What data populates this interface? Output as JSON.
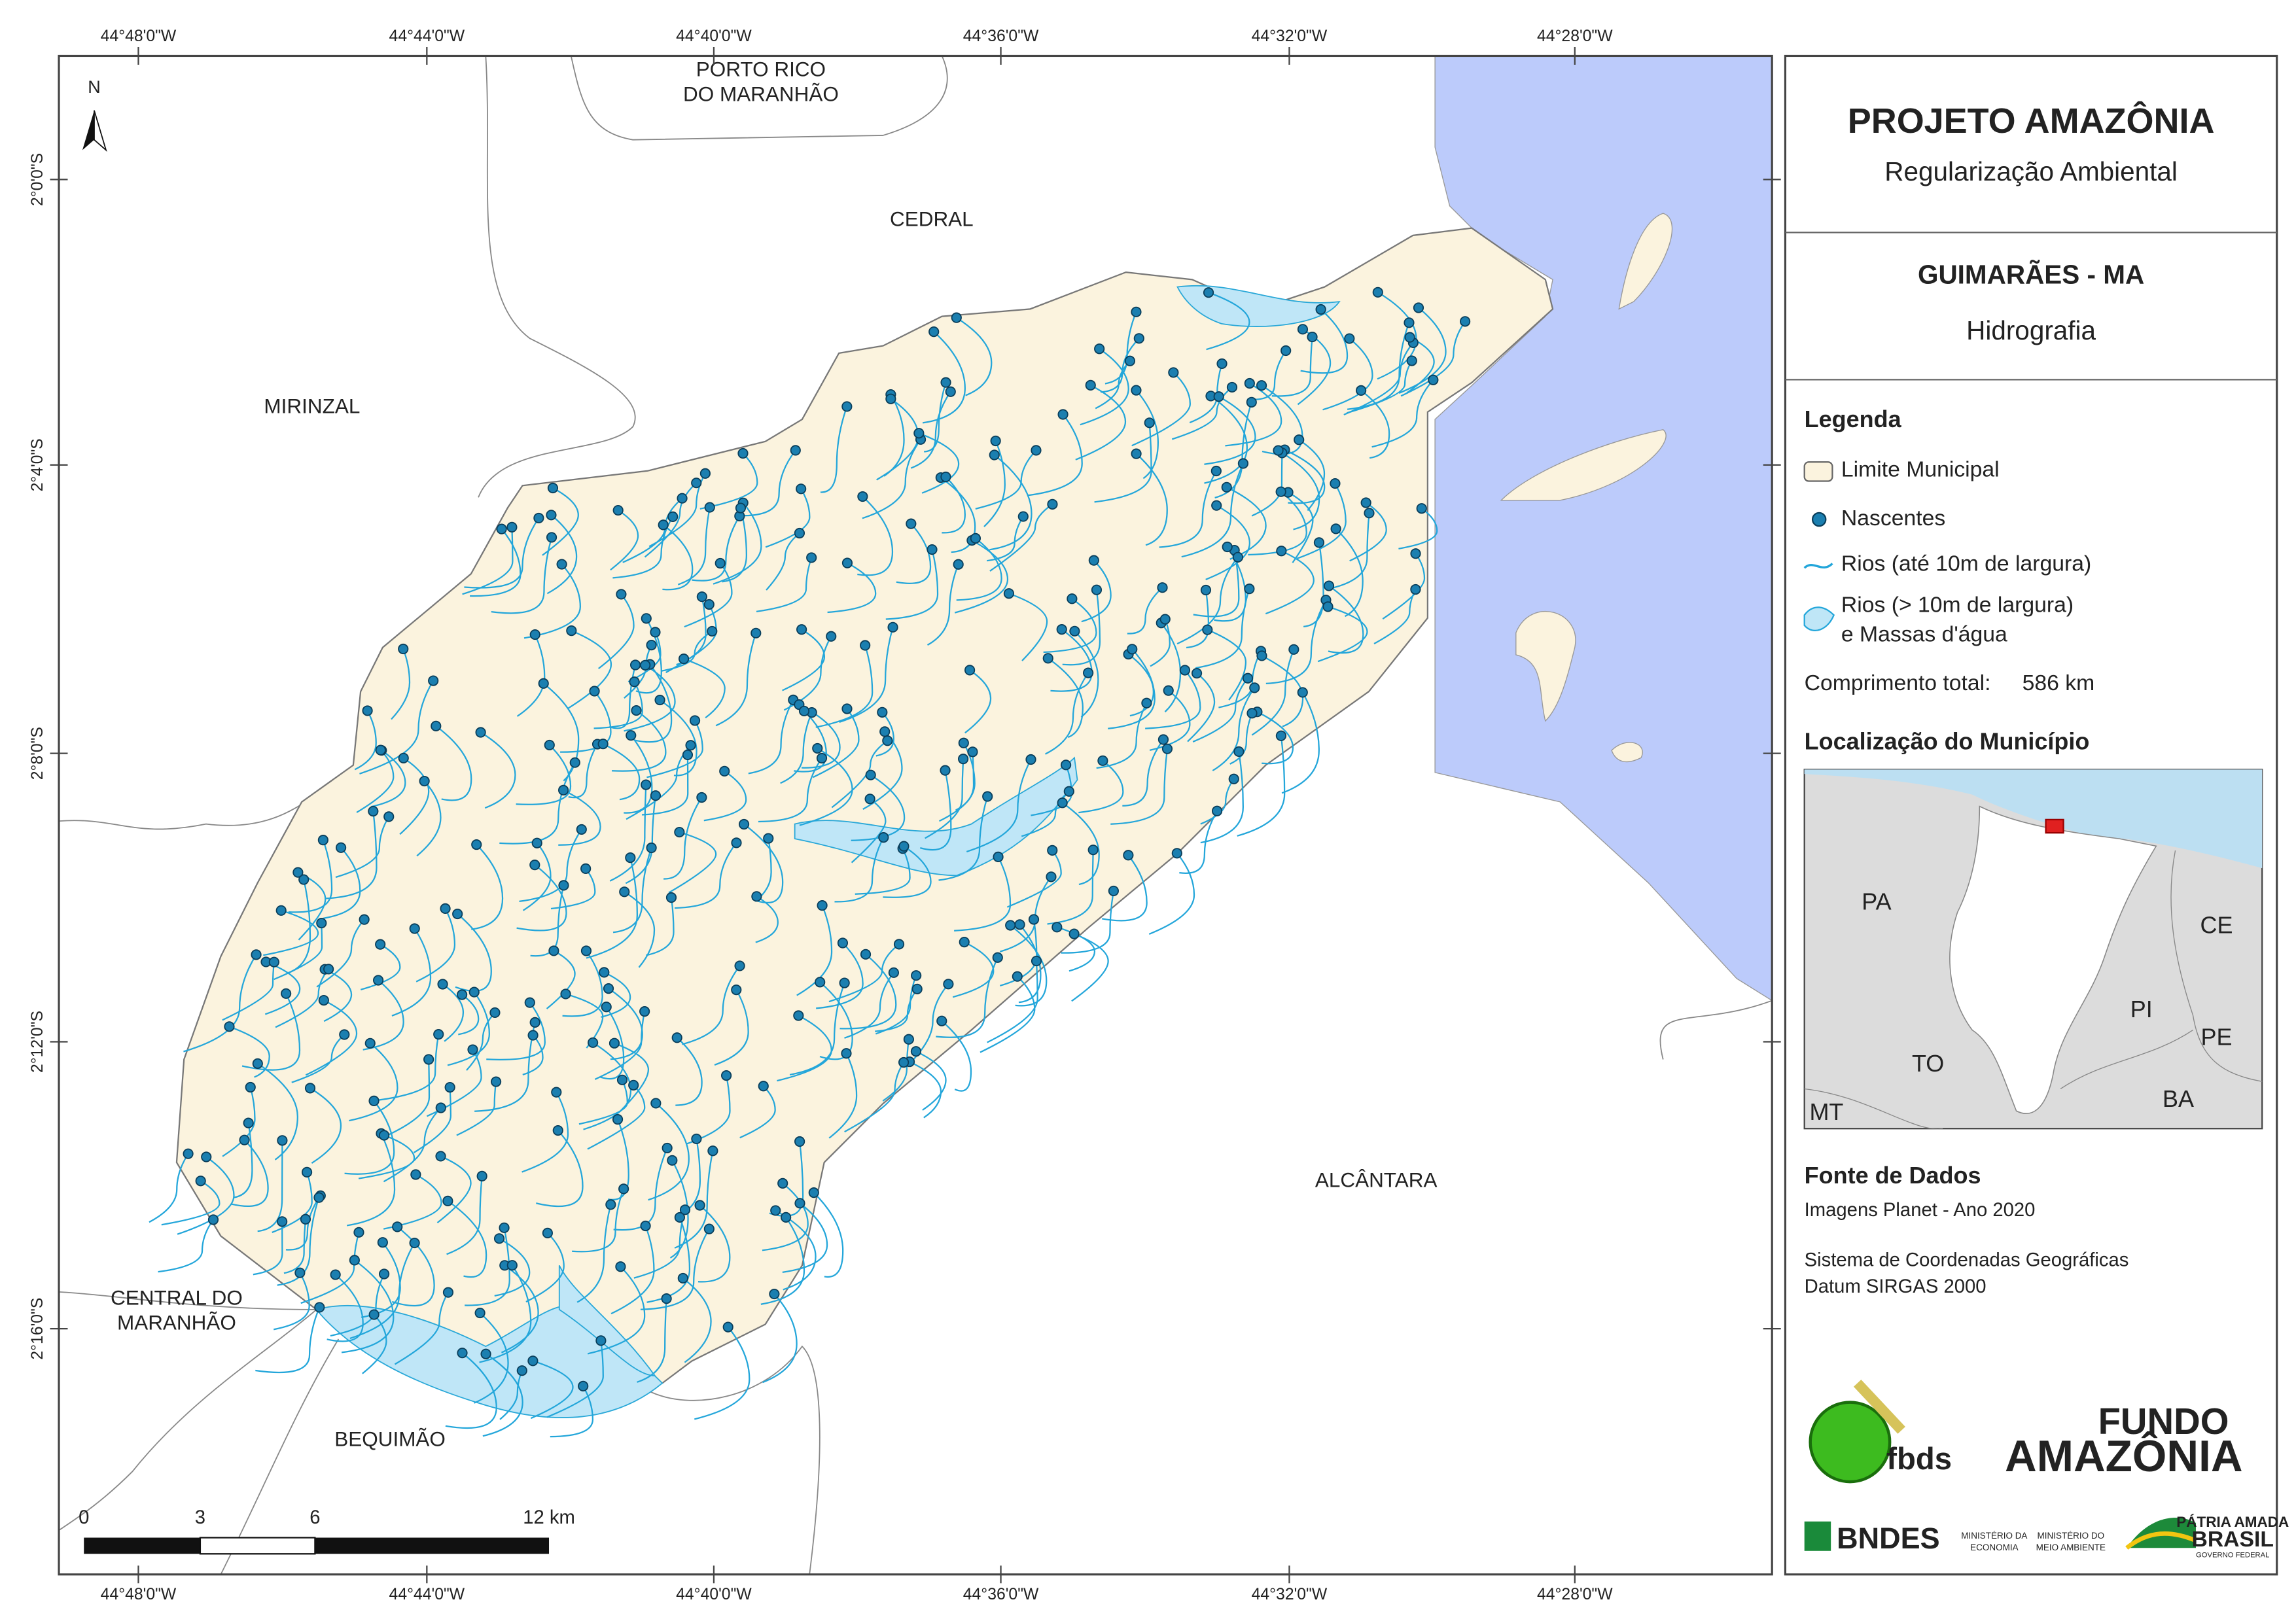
{
  "map": {
    "x_coords": [
      "44°48'0\"W",
      "44°44'0\"W",
      "44°40'0\"W",
      "44°36'0\"W",
      "44°32'0\"W",
      "44°28'0\"W"
    ],
    "y_coords": [
      "2°0'0\"S",
      "2°4'0\"S",
      "2°8'0\"S",
      "2°12'0\"S",
      "2°16'0\"S"
    ],
    "places": [
      [
        "PORTO RICO",
        "DO MARANHÃO"
      ],
      [
        "CEDRAL"
      ],
      [
        "MIRINZAL"
      ],
      [
        "CENTRAL DO",
        "MARANHÃO"
      ],
      [
        "BEQUIMÃO"
      ],
      [
        "ALCÂNTARA"
      ]
    ],
    "north": "N",
    "scale_labels": [
      "0",
      "3",
      "6",
      "12 km"
    ]
  },
  "panel": {
    "title": "PROJETO AMAZÔNIA",
    "subtitle": "Regularização Ambiental",
    "municipality": "GUIMARÃES - MA",
    "theme": "Hidrografia",
    "legend": {
      "title": "Legenda",
      "items": [
        [
          "Limite Municipal"
        ],
        [
          "Nascentes"
        ],
        [
          "Rios (até 10m de largura)"
        ],
        [
          "Rios (> 10m de largura)",
          "e Massas d'água"
        ]
      ]
    },
    "total_length_label": "Comprimento total:",
    "total_length": "586 km",
    "location": {
      "title": "Localização do Município",
      "states": [
        "PA",
        "CE",
        "PI",
        "TO",
        "PE",
        "BA",
        "MT"
      ]
    },
    "source": {
      "title": "Fonte de Dados",
      "lines": [
        "Imagens Planet - Ano 2020",
        "Sistema de Coordenadas Geográficas",
        "Datum SIRGAS 2000"
      ]
    },
    "logos": [
      "fbds",
      "FUNDO",
      "AMAZÔNIA",
      "BNDES",
      "MINISTÉRIO DA",
      "ECONOMIA",
      "MINISTÉRIO DO",
      "MEIO AMBIENTE",
      "PÁTRIA AMADA",
      "BRASIL",
      "GOVERNO FEDERAL"
    ]
  }
}
